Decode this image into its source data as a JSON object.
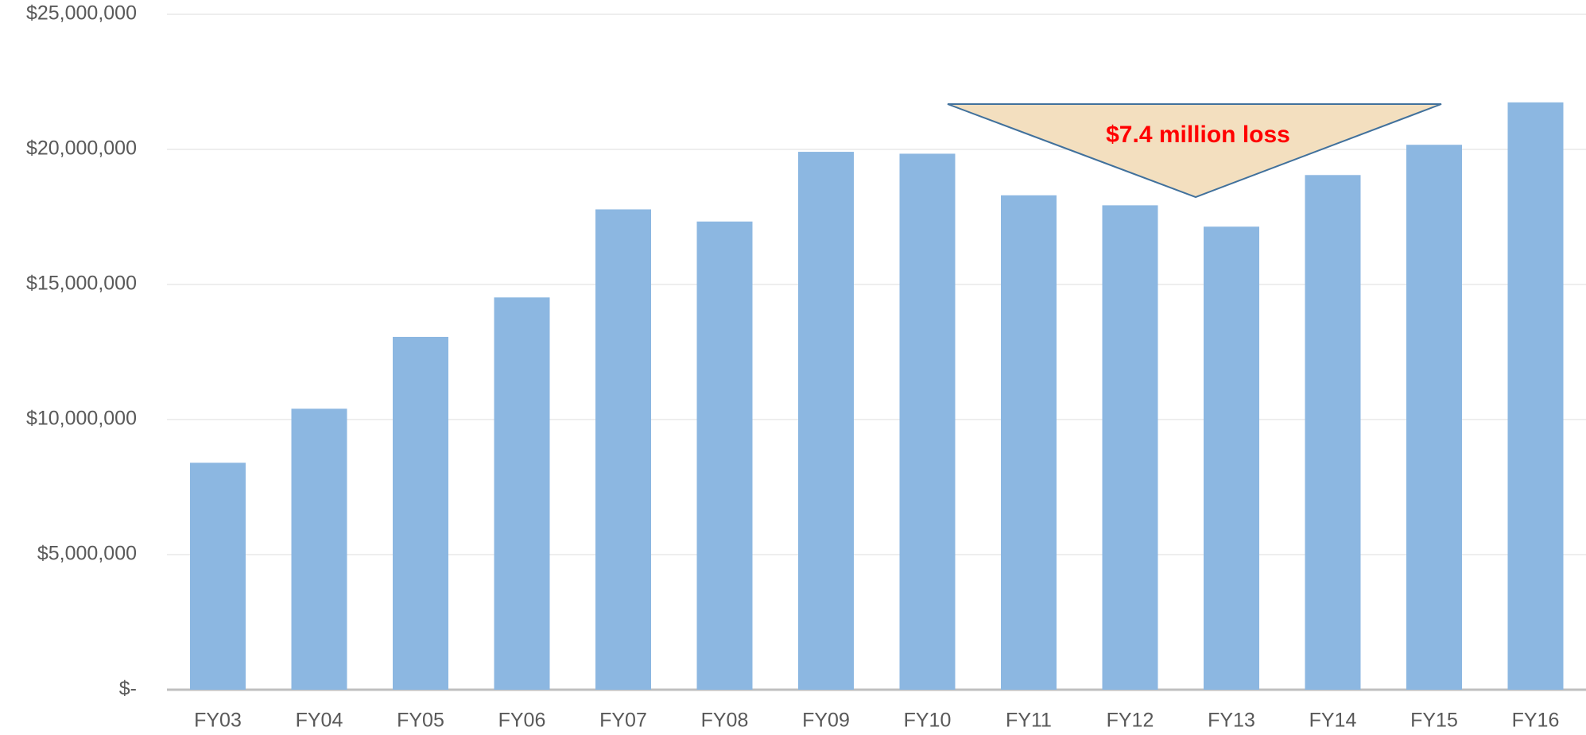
{
  "chart_data": {
    "type": "bar",
    "categories": [
      "FY03",
      "FY04",
      "FY05",
      "FY06",
      "FY07",
      "FY08",
      "FY09",
      "FY10",
      "FY11",
      "FY12",
      "FY13",
      "FY14",
      "FY15",
      "FY16"
    ],
    "values": [
      8400000,
      10400000,
      13060000,
      14520000,
      17780000,
      17330000,
      19910000,
      19840000,
      18300000,
      17930000,
      17140000,
      19050000,
      20170000,
      21740000
    ],
    "color": "#8cb7e1",
    "ylim": [
      0,
      25000000
    ],
    "yticks": [
      {
        "value": 0,
        "label": "$-"
      },
      {
        "value": 5000000,
        "label": "$5,000,000"
      },
      {
        "value": 10000000,
        "label": "$10,000,000"
      },
      {
        "value": 15000000,
        "label": "$15,000,000"
      },
      {
        "value": 20000000,
        "label": "$20,000,000"
      },
      {
        "value": 25000000,
        "label": "$25,000,000"
      }
    ],
    "grid": true,
    "annotation": "$7.4 million loss"
  }
}
